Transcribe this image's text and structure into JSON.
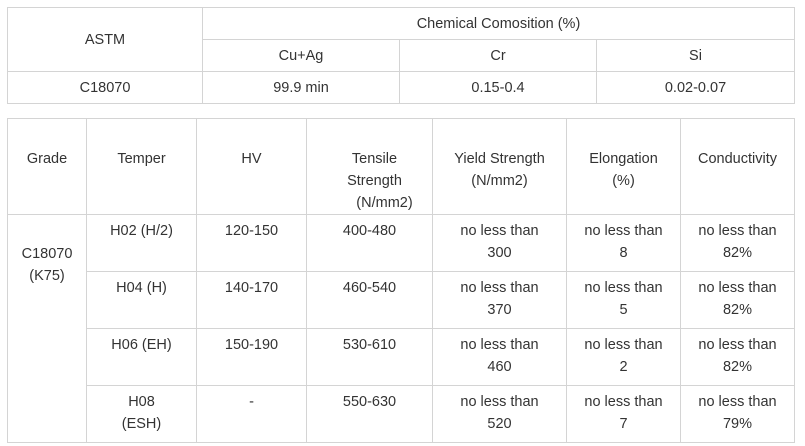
{
  "composition_table": {
    "astm_header": "ASTM",
    "group_header": "Chemical Comosition (%)",
    "columns": [
      "Cu+Ag",
      "Cr",
      "Si"
    ],
    "row": {
      "astm": "C18070",
      "values": [
        "99.9 min",
        "0.15-0.4",
        "0.02-0.07"
      ]
    }
  },
  "properties_table": {
    "headers": {
      "grade": "Grade",
      "temper": "Temper",
      "hv": "HV",
      "tensile_line1": "Tensile",
      "tensile_line2": "Strength",
      "tensile_line3": "(N/mm2)",
      "yield_line1": "Yield Strength",
      "yield_line2": "(N/mm2)",
      "elong_line1": "Elongation",
      "elong_line2": "(%)",
      "conductivity": "Conductivity"
    },
    "grade_line1": "C18070",
    "grade_line2": "(K75)",
    "rows": [
      {
        "temper_line1": "H02  (H/2)",
        "temper_line2": "",
        "hv": "120-150",
        "tensile": "400-480",
        "yield_line1": "no less than",
        "yield_line2": "300",
        "elong_line1": "no less than",
        "elong_line2": "8",
        "cond_line1": "no less than",
        "cond_line2": "82%"
      },
      {
        "temper_line1": "H04  (H)",
        "temper_line2": "",
        "hv": "140-170",
        "tensile": "460-540",
        "yield_line1": "no less than",
        "yield_line2": "370",
        "elong_line1": "no less than",
        "elong_line2": "5",
        "cond_line1": "no less than",
        "cond_line2": "82%"
      },
      {
        "temper_line1": "H06  (EH)",
        "temper_line2": "",
        "hv": "150-190",
        "tensile": "530-610",
        "yield_line1": "no less than",
        "yield_line2": "460",
        "elong_line1": "no less than",
        "elong_line2": "2",
        "cond_line1": "no less than",
        "cond_line2": "82%"
      },
      {
        "temper_line1": "H08",
        "temper_line2": "(ESH)",
        "hv": "-",
        "tensile": "550-630",
        "yield_line1": "no less than",
        "yield_line2": "520",
        "elong_line1": "no less than",
        "elong_line2": "7",
        "cond_line1": "no less than",
        "cond_line2": "79%"
      }
    ]
  }
}
